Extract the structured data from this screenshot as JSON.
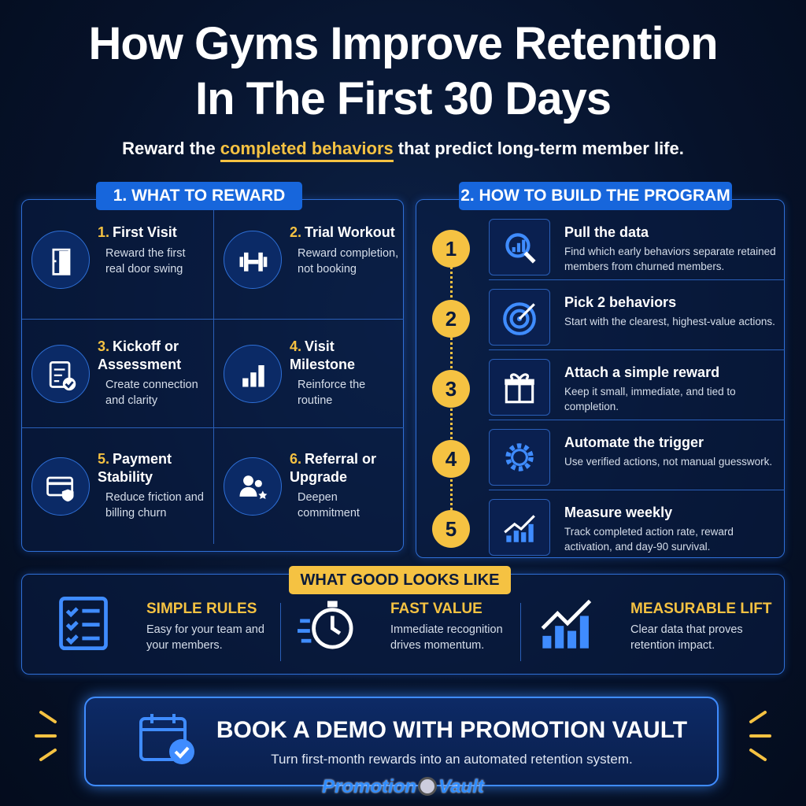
{
  "header": {
    "title_lines": [
      "How Gyms Improve Retention",
      "In The First 30 Days"
    ],
    "subtitle": {
      "before": "Reward the",
      "highlight": "completed behaviors",
      "after": "that predict long-term member life."
    }
  },
  "reward": {
    "heading": "1. WHAT TO REWARD",
    "items": [
      {
        "number": "1.",
        "title": "First Visit",
        "desc": "Reward the first real door swing"
      },
      {
        "number": "2.",
        "title": "Trial Workout",
        "desc": "Reward completion, not booking"
      },
      {
        "number": "3.",
        "title": "Kickoff or Assessment",
        "desc": "Create connection and clarity"
      },
      {
        "number": "4.",
        "title": "Visit Milestone",
        "desc": "Reinforce the routine"
      },
      {
        "number": "5.",
        "title": "Payment Stability",
        "desc": "Reduce friction and billing churn"
      },
      {
        "number": "6.",
        "title": "Referral or Upgrade",
        "desc": "Deepen commitment"
      }
    ]
  },
  "program": {
    "heading": "2. HOW TO BUILD THE PROGRAM",
    "steps": [
      {
        "number": "1",
        "title": "Pull the data",
        "desc": "Find which early behaviors separate retained members from churned members."
      },
      {
        "number": "2",
        "title": "Pick 2 behaviors",
        "desc": "Start with the clearest, highest-value actions."
      },
      {
        "number": "3",
        "title": "Attach a simple reward",
        "desc": "Keep it small, immediate, and tied to completion."
      },
      {
        "number": "4",
        "title": "Automate the trigger",
        "desc": "Use verified actions, not manual guesswork."
      },
      {
        "number": "5",
        "title": "Measure weekly",
        "desc": "Track completed action rate, reward activation, and day-90 survival."
      }
    ]
  },
  "good": {
    "heading": "WHAT GOOD LOOKS LIKE",
    "items": [
      {
        "title": "SIMPLE RULES",
        "desc": "Easy for your team and your members."
      },
      {
        "title": "FAST VALUE",
        "desc": "Immediate recognition drives momentum."
      },
      {
        "title": "MEASURABLE LIFT",
        "desc": "Clear data that proves retention impact."
      }
    ]
  },
  "cta": {
    "title": "BOOK A DEMO WITH PROMOTION VAULT",
    "subtitle": "Turn first-month rewards into an automated retention system.",
    "brand": [
      "Promotion",
      "Vault"
    ]
  }
}
